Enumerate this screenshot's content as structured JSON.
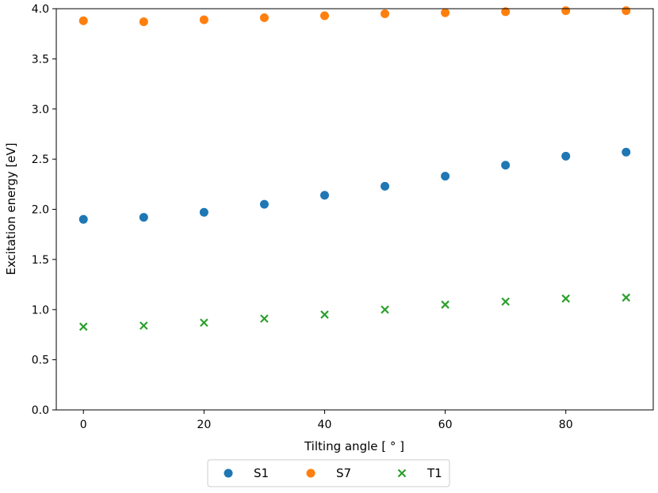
{
  "chart_data": {
    "type": "scatter",
    "title": "",
    "xlabel": "Tilting angle [$^\\circ$]",
    "xlabel_display": "Tilting angle [ ° ]",
    "ylabel": "Excitation energy [eV]",
    "xlim": [
      -4.5,
      94.5
    ],
    "ylim": [
      0.0,
      4.0
    ],
    "xticks": [
      0,
      20,
      40,
      60,
      80
    ],
    "xtick_labels": [
      "0",
      "20",
      "40",
      "60",
      "80"
    ],
    "yticks": [
      0.0,
      0.5,
      1.0,
      1.5,
      2.0,
      2.5,
      3.0,
      3.5,
      4.0
    ],
    "ytick_labels": [
      "0.0",
      "0.5",
      "1.0",
      "1.5",
      "2.0",
      "2.5",
      "3.0",
      "3.5",
      "4.0"
    ],
    "grid": false,
    "legend_position": "bottom-center-outside",
    "x": [
      0,
      10,
      20,
      30,
      40,
      50,
      60,
      70,
      80,
      90
    ],
    "series": [
      {
        "name": "S1",
        "marker": "circle",
        "color": "#1f77b4",
        "values": [
          1.9,
          1.92,
          1.97,
          2.05,
          2.14,
          2.23,
          2.33,
          2.44,
          2.53,
          2.57
        ]
      },
      {
        "name": "S7",
        "marker": "circle",
        "color": "#ff7f0e",
        "values": [
          3.88,
          3.87,
          3.89,
          3.91,
          3.93,
          3.95,
          3.96,
          3.97,
          3.98,
          3.98
        ]
      },
      {
        "name": "T1",
        "marker": "x",
        "color": "#2ca02c",
        "values": [
          0.83,
          0.84,
          0.87,
          0.91,
          0.95,
          1.0,
          1.05,
          1.08,
          1.11,
          1.12
        ]
      }
    ]
  }
}
